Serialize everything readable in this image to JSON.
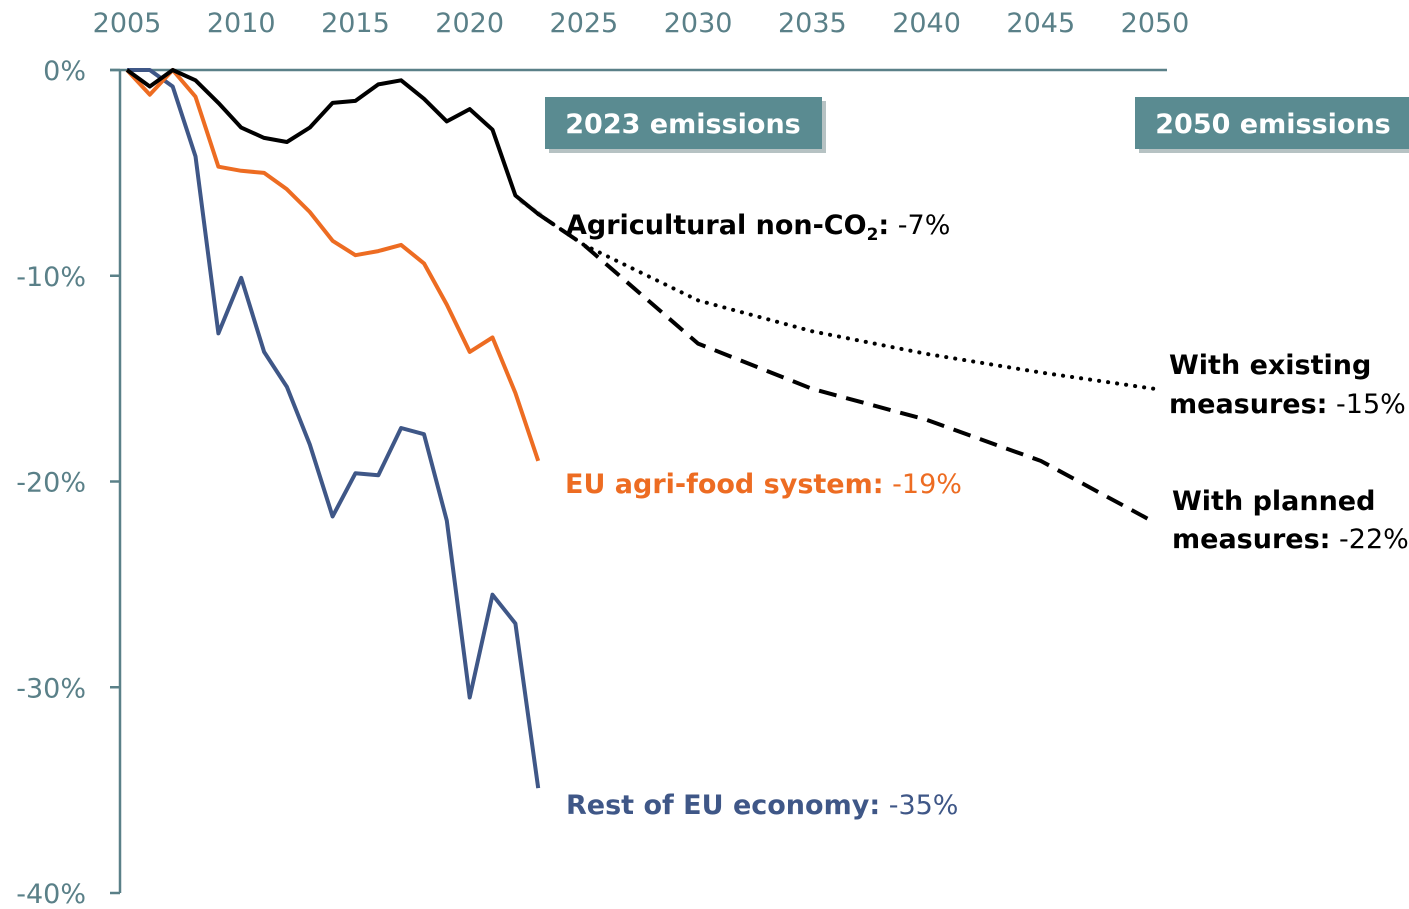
{
  "chart_data": {
    "type": "line",
    "xlim": [
      2005,
      2050
    ],
    "ylim": [
      -40,
      0
    ],
    "x_ticks": [
      "2005",
      "2010",
      "2015",
      "2020",
      "2025",
      "2030",
      "2035",
      "2040",
      "2045",
      "2050"
    ],
    "y_ticks": [
      "0%",
      "-10%",
      "-20%",
      "-30%",
      "-40%"
    ],
    "x_axis_position": "top",
    "grid": false,
    "colors": {
      "axis": "#5a8088",
      "agricultural": "#000000",
      "agri_food": "#ed6c22",
      "rest_economy": "#3f5787",
      "box_fill": "#5a8b91",
      "connector": "#c0c0c0"
    },
    "boxes": [
      {
        "text": "2023 emissions"
      },
      {
        "text": "2050 emissions"
      }
    ],
    "series": [
      {
        "key": "agricultural",
        "label_bold": "Agricultural non-CO",
        "label_sub": "2",
        "label_colon": ":",
        "label_value": " -7%",
        "x": [
          2005,
          2006,
          2007,
          2008,
          2009,
          2010,
          2011,
          2012,
          2013,
          2014,
          2015,
          2016,
          2017,
          2018,
          2019,
          2020,
          2021,
          2022,
          2023
        ],
        "y": [
          0,
          -0.8,
          0,
          -0.5,
          -1.6,
          -2.8,
          -3.3,
          -3.5,
          -2.8,
          -1.6,
          -1.5,
          -0.7,
          -0.5,
          -1.4,
          -2.5,
          -1.9,
          -2.9,
          -6.1,
          -7.0
        ]
      },
      {
        "key": "agri_food",
        "label_bold": "EU agri-food system:",
        "label_value": " -19%",
        "x": [
          2005,
          2006,
          2007,
          2008,
          2009,
          2010,
          2011,
          2012,
          2013,
          2014,
          2015,
          2016,
          2017,
          2018,
          2019,
          2020,
          2021,
          2022,
          2023
        ],
        "y": [
          0,
          -1.2,
          0,
          -1.3,
          -4.7,
          -4.9,
          -5.0,
          -5.8,
          -6.9,
          -8.3,
          -9.0,
          -8.8,
          -8.5,
          -9.4,
          -11.4,
          -13.7,
          -13.0,
          -15.7,
          -19.0
        ]
      },
      {
        "key": "rest_economy",
        "label_bold": "Rest of EU economy:",
        "label_value": " -35%",
        "x": [
          2005,
          2006,
          2007,
          2008,
          2009,
          2010,
          2011,
          2012,
          2013,
          2014,
          2015,
          2016,
          2017,
          2018,
          2019,
          2020,
          2021,
          2022,
          2023
        ],
        "y": [
          0,
          0,
          -0.8,
          -4.2,
          -12.8,
          -10.1,
          -13.7,
          -15.4,
          -18.2,
          -21.7,
          -19.6,
          -19.7,
          -17.4,
          -17.7,
          -21.9,
          -30.5,
          -25.5,
          -26.9,
          -34.9
        ]
      },
      {
        "key": "existing",
        "style": "dotted",
        "label_bold_1": "With existing",
        "label_bold_2": "measures:",
        "label_value": " -15%",
        "x": [
          2023,
          2025,
          2030,
          2035,
          2040,
          2045,
          2050
        ],
        "y": [
          -7.0,
          -8.5,
          -11.2,
          -12.7,
          -13.8,
          -14.7,
          -15.5
        ]
      },
      {
        "key": "planned",
        "style": "dashed",
        "label_bold_1": "With planned",
        "label_bold_2": "measures:",
        "label_value": " -22%",
        "x": [
          2023,
          2025,
          2030,
          2035,
          2040,
          2045,
          2050
        ],
        "y": [
          -7.0,
          -8.5,
          -13.3,
          -15.5,
          -17.0,
          -19.0,
          -22.0
        ]
      }
    ]
  }
}
